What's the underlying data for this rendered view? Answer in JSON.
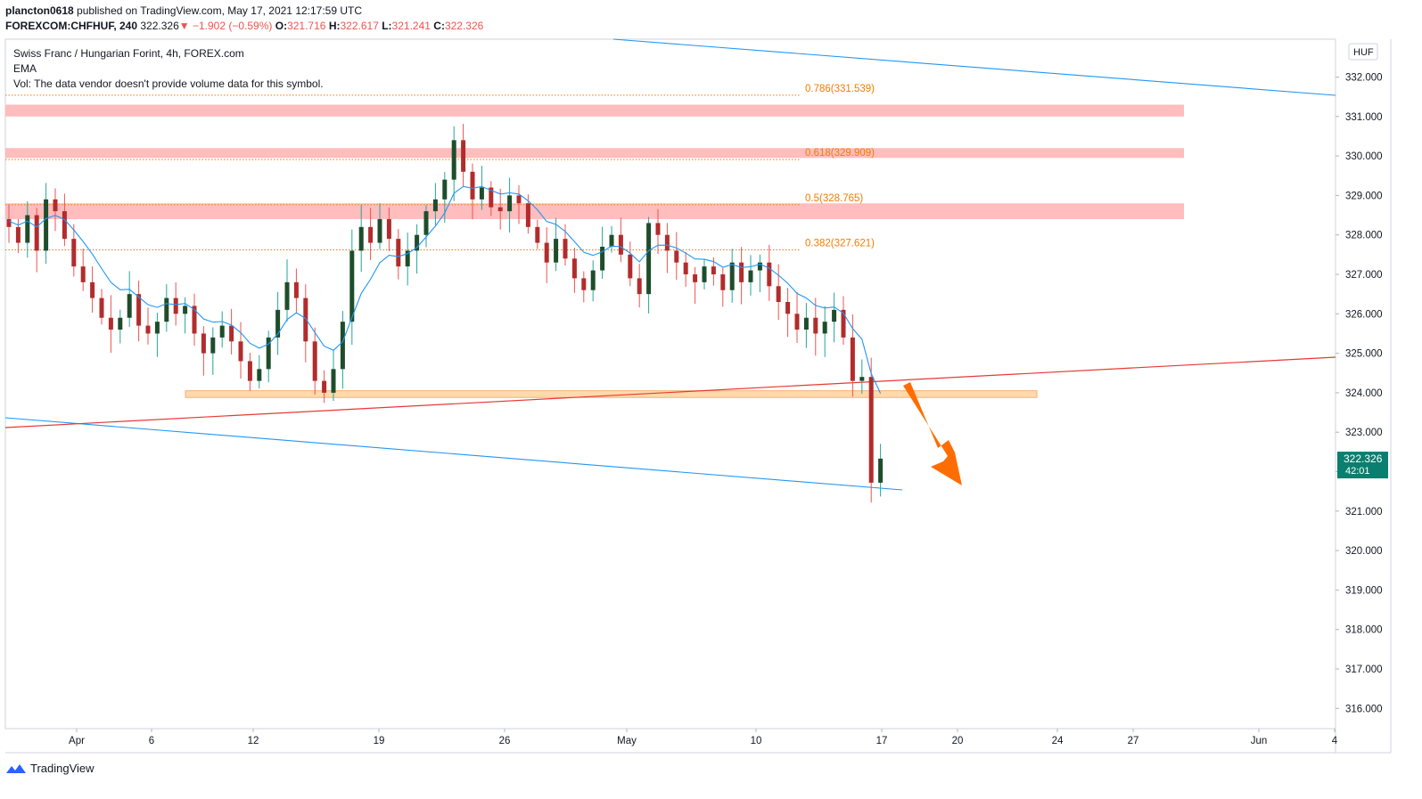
{
  "header": {
    "author": "plancton0618",
    "published": "published on TradingView.com, May 17, 2021 12:17:59 UTC",
    "symbol": "FOREXCOM:CHFHUF, 240",
    "last": "322.326",
    "change_arrow": "▼",
    "change": "−1.902 (−0.59%)",
    "o_label": "O:",
    "o": "321.716",
    "h_label": "H:",
    "h": "322.617",
    "l_label": "L:",
    "l": "321.241",
    "c_label": "C:",
    "c": "322.326"
  },
  "legend": {
    "title": "Swiss Franc / Hungarian Forint, 4h, FOREX.com",
    "ema": "EMA",
    "vol": "Vol: The data vendor doesn't provide volume data for this symbol."
  },
  "footer": {
    "brand": "TradingView",
    "logo_icon": "tradingview-logo-icon"
  },
  "colors": {
    "up": "#26a69a",
    "down": "#ef5350",
    "bull_body": "#1e4d2b",
    "bear_body": "#b22c2c",
    "ema": "#2196f3",
    "fib": "#f57c00",
    "zone_red": "#ffbdbd",
    "zone_orange": "#ffd9b0",
    "arrow": "#ff6d00",
    "price_tag": "#0b7f6f"
  },
  "chart_data": {
    "type": "candlestick",
    "currency_label": "HUF",
    "ylim": [
      315.5,
      332.7
    ],
    "y_ticks": [
      "332.000",
      "331.000",
      "330.000",
      "329.000",
      "328.000",
      "327.000",
      "326.000",
      "325.000",
      "324.000",
      "323.000",
      "322.000",
      "321.000",
      "320.000",
      "319.000",
      "318.000",
      "317.000",
      "316.000"
    ],
    "x_ticks": [
      "Apr",
      "6",
      "12",
      "19",
      "26",
      "May",
      "10",
      "17",
      "20",
      "24",
      "27",
      "Jun",
      "4"
    ],
    "fib_levels": [
      {
        "label": "0.786(331.539)",
        "value": 331.539
      },
      {
        "label": "0.618(329.909)",
        "value": 329.909
      },
      {
        "label": "0.5(328.765)",
        "value": 328.765
      },
      {
        "label": "0.382(327.621)",
        "value": 327.621
      }
    ],
    "zones": [
      {
        "from": 331.0,
        "to": 331.3,
        "color": "red"
      },
      {
        "from": 329.95,
        "to": 330.2,
        "color": "red"
      },
      {
        "from": 328.4,
        "to": 328.8,
        "color": "red"
      },
      {
        "from": 323.88,
        "to": 324.05,
        "color": "orange"
      }
    ],
    "last_price": "322.326",
    "countdown": "42:01",
    "close_series": [
      328.2,
      327.8,
      328.5,
      327.6,
      328.9,
      328.6,
      327.9,
      327.2,
      326.8,
      326.4,
      325.9,
      325.6,
      325.9,
      326.5,
      325.7,
      325.5,
      325.8,
      326.4,
      326.0,
      326.2,
      325.5,
      325.0,
      325.4,
      325.7,
      325.3,
      324.8,
      324.3,
      324.6,
      325.4,
      326.1,
      326.8,
      326.4,
      325.3,
      324.3,
      324.0,
      324.6,
      325.8,
      327.6,
      328.2,
      327.8,
      328.4,
      327.9,
      327.2,
      327.6,
      328.0,
      328.6,
      328.9,
      329.4,
      330.4,
      329.6,
      328.9,
      329.2,
      328.7,
      328.6,
      329.0,
      328.8,
      328.2,
      327.8,
      327.3,
      327.9,
      327.4,
      326.9,
      326.6,
      327.1,
      327.7,
      328.0,
      327.5,
      326.9,
      326.5,
      328.3,
      328.0,
      327.6,
      327.3,
      327.0,
      326.8,
      327.2,
      327.0,
      326.6,
      327.3,
      326.8,
      327.1,
      327.3,
      326.7,
      326.3,
      326.0,
      325.6,
      325.9,
      325.5,
      325.8,
      326.1,
      325.4,
      324.3,
      324.4,
      321.72,
      322.33
    ]
  }
}
